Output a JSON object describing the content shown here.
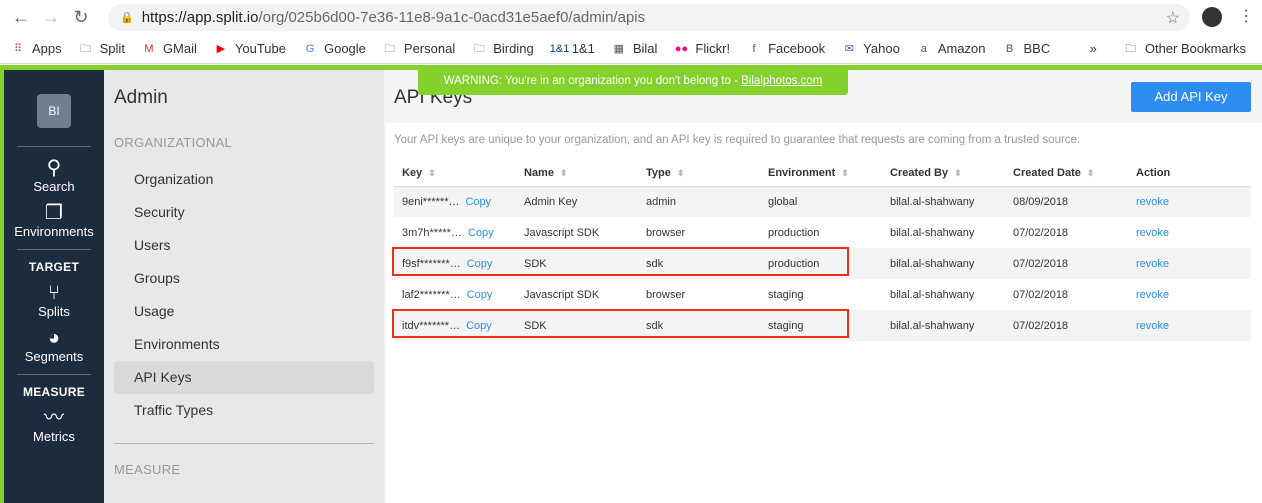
{
  "browser": {
    "url_host": "https://app.split.io",
    "url_path": "/org/025b6d00-7e36-11e8-9a1c-0acd31e5aef0/admin/apis",
    "bookmarks": [
      {
        "label": "Apps",
        "icon": "apps-grid-icon"
      },
      {
        "label": "Split",
        "icon": "folder-icon"
      },
      {
        "label": "GMail",
        "icon": "gmail-icon"
      },
      {
        "label": "YouTube",
        "icon": "youtube-icon"
      },
      {
        "label": "Google",
        "icon": "google-icon"
      },
      {
        "label": "Personal",
        "icon": "folder-icon"
      },
      {
        "label": "Birding",
        "icon": "folder-icon"
      },
      {
        "label": "1&1",
        "icon": "1and1-icon"
      },
      {
        "label": "Bilal",
        "icon": "page-icon"
      },
      {
        "label": "Flickr!",
        "icon": "flickr-icon"
      },
      {
        "label": "Facebook",
        "icon": "facebook-icon"
      },
      {
        "label": "Yahoo",
        "icon": "yahoo-icon"
      },
      {
        "label": "Amazon",
        "icon": "amazon-icon"
      },
      {
        "label": "BBC",
        "icon": "bbc-icon"
      }
    ],
    "more": "»",
    "other_bookmarks": "Other Bookmarks"
  },
  "warning": {
    "text": "WARNING: You're in an organization you don't belong to - ",
    "org": "Bilalphotos.com"
  },
  "nav": {
    "org_initials": "BI",
    "search": "Search",
    "environments": "Environments",
    "target_head": "TARGET",
    "splits": "Splits",
    "segments": "Segments",
    "measure_head": "MEASURE",
    "metrics": "Metrics"
  },
  "admin": {
    "title": "Admin",
    "section1": "ORGANIZATIONAL",
    "items": [
      "Organization",
      "Security",
      "Users",
      "Groups",
      "Usage",
      "Environments",
      "API Keys",
      "Traffic Types"
    ],
    "section2": "MEASURE"
  },
  "main": {
    "title": "API Keys",
    "add_button": "Add API Key",
    "description": "Your API keys are unique to your organization, and an API key is required to guarantee that requests are coming from a trusted source.",
    "columns": [
      "Key",
      "Name",
      "Type",
      "Environment",
      "Created By",
      "Created Date",
      "Action"
    ],
    "copy_label": "Copy",
    "rows": [
      {
        "key": "9eni******…",
        "name": "Admin Key",
        "type": "admin",
        "environment": "global",
        "created_by": "bilal.al-shahwany",
        "created_date": "08/09/2018",
        "action": "revoke"
      },
      {
        "key": "3m7h*****…",
        "name": "Javascript SDK",
        "type": "browser",
        "environment": "production",
        "created_by": "bilal.al-shahwany",
        "created_date": "07/02/2018",
        "action": "revoke"
      },
      {
        "key": "f9sf*******…",
        "name": "SDK",
        "type": "sdk",
        "environment": "production",
        "created_by": "bilal.al-shahwany",
        "created_date": "07/02/2018",
        "action": "revoke"
      },
      {
        "key": "laf2*******…",
        "name": "Javascript SDK",
        "type": "browser",
        "environment": "staging",
        "created_by": "bilal.al-shahwany",
        "created_date": "07/02/2018",
        "action": "revoke"
      },
      {
        "key": "itdv*******…",
        "name": "SDK",
        "type": "sdk",
        "environment": "staging",
        "created_by": "bilal.al-shahwany",
        "created_date": "07/02/2018",
        "action": "revoke"
      }
    ]
  },
  "colors": {
    "accent": "#2d8ef0",
    "brand_green": "#84d12e",
    "nav_dark": "#1c2b3e",
    "highlight": "#f0311a"
  }
}
